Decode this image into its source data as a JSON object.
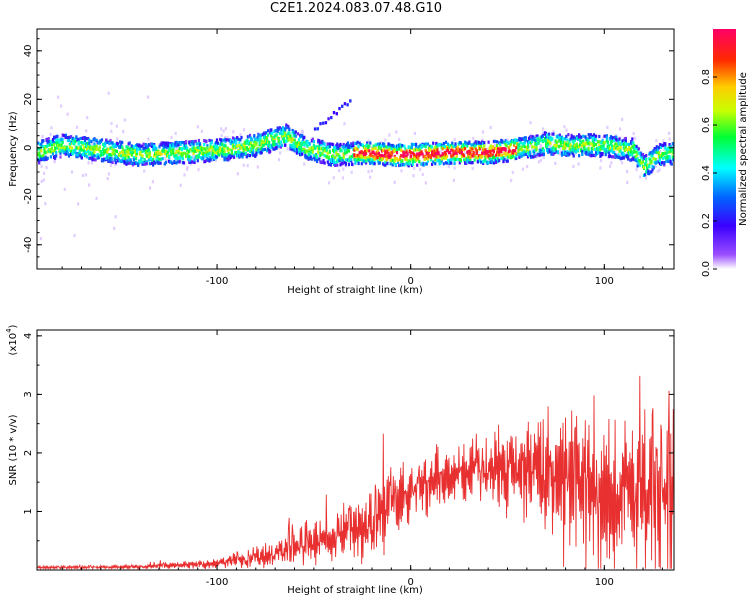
{
  "title": "C2E1.2024.083.07.48.G10",
  "chart_data": [
    {
      "type": "heatmap",
      "name": "spectrogram",
      "xlabel": "Height of straight line (km)",
      "ylabel": "Frequency (Hz)",
      "xlim": [
        -193,
        136
      ],
      "ylim": [
        -50,
        49
      ],
      "xticks": [
        -100,
        0,
        100
      ],
      "xtick_labels": [
        "-100",
        "0",
        "100"
      ],
      "yticks": [
        -40,
        -20,
        0,
        20,
        40
      ],
      "ytick_labels": [
        "-40",
        "-20",
        "0",
        "20",
        "40"
      ],
      "ridge_center_hz": {
        "x": [
          -193,
          -180,
          -160,
          -140,
          -120,
          -100,
          -80,
          -65,
          -55,
          -40,
          -25,
          -10,
          0,
          20,
          40,
          50,
          60,
          70,
          80,
          100,
          115,
          120,
          128,
          136
        ],
        "y": [
          -2,
          1,
          -1,
          -3,
          -2,
          -1,
          1,
          5,
          0,
          -3,
          -2,
          -3,
          -3,
          -2,
          -2,
          -1,
          0,
          2,
          1,
          1,
          -1,
          -8,
          -3,
          -2
        ]
      },
      "colorbar": {
        "label": "Normalized spectral amplitude",
        "range": [
          0,
          1
        ],
        "ticks": [
          0.0,
          0.2,
          0.4,
          0.6,
          0.8
        ],
        "tick_labels": [
          "0.0",
          "0.2",
          "0.4",
          "0.6",
          "0.8"
        ]
      }
    },
    {
      "type": "line",
      "name": "snr",
      "xlabel": "Height of straight line (km)",
      "ylabel": "SNR (10 * v/v)",
      "y_multiplier": "(x10",
      "y_multiplier_exp": "4",
      "y_multiplier_close": ")",
      "xlim": [
        -193,
        136
      ],
      "ylim": [
        0,
        4.1
      ],
      "xticks": [
        -100,
        0,
        100
      ],
      "xtick_labels": [
        "-100",
        "0",
        "100"
      ],
      "yticks": [
        1,
        2,
        3,
        4
      ],
      "ytick_labels": [
        "1",
        "2",
        "3",
        "4"
      ],
      "line_color": "#e83030",
      "envelope": {
        "x": [
          -193,
          -150,
          -100,
          -85,
          -70,
          -60,
          -40,
          -20,
          -10,
          0,
          20,
          40,
          60,
          70,
          80,
          90,
          100,
          110,
          120,
          130,
          136
        ],
        "mean": [
          0.04,
          0.05,
          0.1,
          0.2,
          0.28,
          0.4,
          0.55,
          0.75,
          1.1,
          1.35,
          1.6,
          1.75,
          1.7,
          1.6,
          1.45,
          1.4,
          1.3,
          1.35,
          1.3,
          1.25,
          1.3
        ],
        "amp": [
          0.03,
          0.03,
          0.08,
          0.14,
          0.2,
          0.3,
          0.4,
          0.55,
          0.7,
          0.45,
          0.45,
          0.55,
          0.85,
          1.1,
          1.3,
          1.35,
          1.4,
          1.4,
          1.45,
          1.5,
          1.6
        ]
      }
    }
  ]
}
